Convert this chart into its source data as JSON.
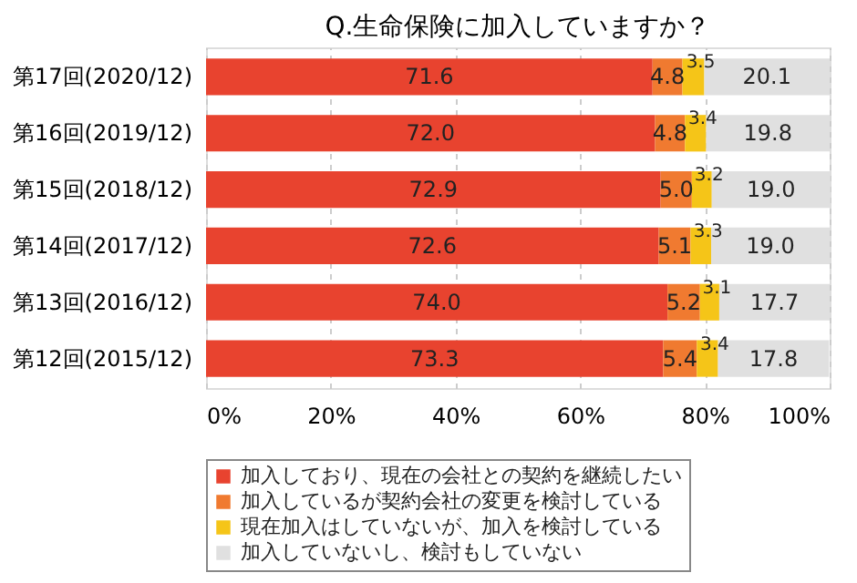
{
  "chart_data": {
    "type": "bar",
    "orientation": "horizontal",
    "stacked": true,
    "title": "Q.生命保険に加入していますか？",
    "categories": [
      "第17回(2020/12)",
      "第16回(2019/12)",
      "第15回(2018/12)",
      "第14回(2017/12)",
      "第13回(2016/12)",
      "第12回(2015/12)"
    ],
    "series": [
      {
        "name": "加入しており、現在の会社との契約を継続したい",
        "color": "#e8432f",
        "values": [
          71.6,
          72.0,
          72.9,
          72.6,
          74.0,
          73.3
        ]
      },
      {
        "name": "加入しているが契約会社の変更を検討している",
        "color": "#f07a30",
        "values": [
          4.8,
          4.8,
          5.0,
          5.1,
          5.2,
          5.4
        ]
      },
      {
        "name": "現在加入はしていないが、加入を検討している",
        "color": "#f5c518",
        "values": [
          3.5,
          3.4,
          3.2,
          3.3,
          3.1,
          3.4
        ]
      },
      {
        "name": "加入していないし、検討もしていない",
        "color": "#e0e0e0",
        "values": [
          20.1,
          19.8,
          19.0,
          19.0,
          17.7,
          17.8
        ]
      }
    ],
    "xlim": [
      0,
      100
    ],
    "xticks": [
      {
        "value": 0,
        "label": "0%"
      },
      {
        "value": 20,
        "label": "20%"
      },
      {
        "value": 40,
        "label": "40%"
      },
      {
        "value": 60,
        "label": "60%"
      },
      {
        "value": 80,
        "label": "80%"
      },
      {
        "value": 100,
        "label": "100%"
      }
    ],
    "grid": "x",
    "legend": "bottom",
    "value_labels": [
      [
        "71.6",
        "72.0",
        "72.9",
        "72.6",
        "74.0",
        "73.3"
      ],
      [
        "4.8",
        "4.8",
        "5.0",
        "5.1",
        "5.2",
        "5.4"
      ],
      [
        "3.5",
        "3.4",
        "3.2",
        "3.3",
        "3.1",
        "3.4"
      ],
      [
        "20.1",
        "19.8",
        "19.0",
        "19.0",
        "17.7",
        "17.8"
      ]
    ]
  }
}
